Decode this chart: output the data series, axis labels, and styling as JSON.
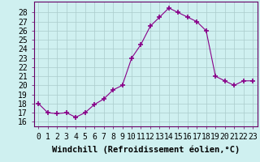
{
  "x": [
    0,
    1,
    2,
    3,
    4,
    5,
    6,
    7,
    8,
    9,
    10,
    11,
    12,
    13,
    14,
    15,
    16,
    17,
    18,
    19,
    20,
    21,
    22,
    23
  ],
  "y": [
    18.0,
    17.0,
    16.9,
    17.0,
    16.5,
    17.0,
    17.9,
    18.5,
    19.5,
    20.0,
    23.0,
    24.5,
    26.5,
    27.5,
    28.5,
    28.0,
    27.5,
    27.0,
    26.0,
    21.0,
    20.5,
    20.0,
    20.5,
    20.5
  ],
  "line_color": "#880088",
  "marker": "+",
  "marker_size": 4,
  "marker_linewidth": 1.2,
  "bg_color": "#cff0f0",
  "grid_color": "#aacccc",
  "xlabel": "Windchill (Refroidissement éolien,°C)",
  "xlabel_fontsize": 7.5,
  "yticks": [
    16,
    17,
    18,
    19,
    20,
    21,
    22,
    23,
    24,
    25,
    26,
    27,
    28
  ],
  "xlim": [
    -0.5,
    23.5
  ],
  "ylim": [
    15.5,
    29.2
  ],
  "tick_fontsize": 7.0,
  "spine_color": "#660066"
}
